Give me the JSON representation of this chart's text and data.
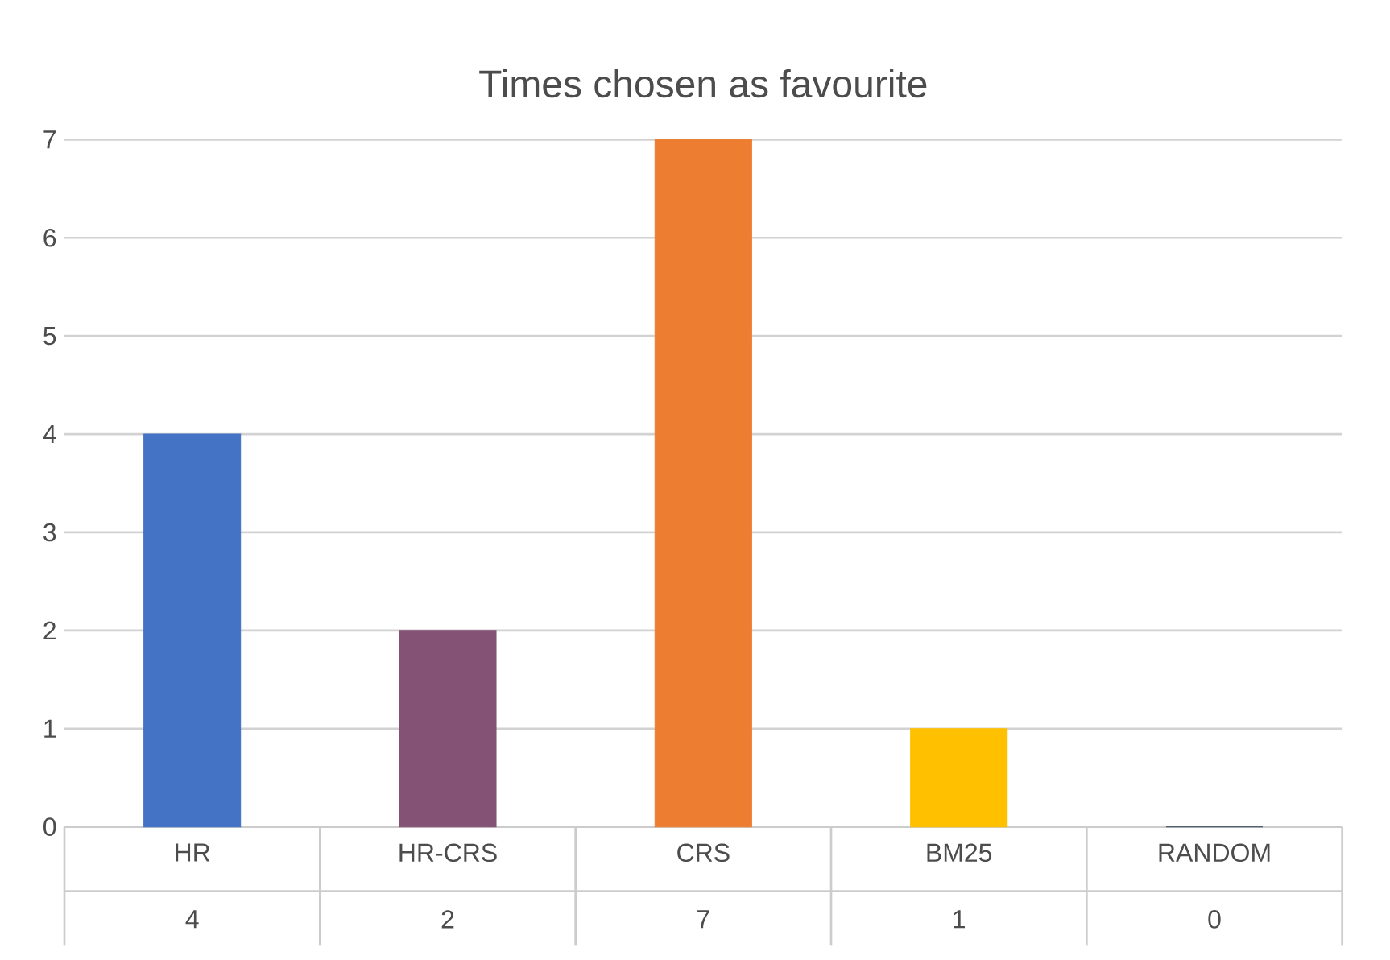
{
  "chart_data": {
    "type": "bar",
    "title": "Times chosen as favourite",
    "categories": [
      "HR",
      "HR-CRS",
      "CRS",
      "BM25",
      "RANDOM"
    ],
    "values": [
      4,
      2,
      7,
      1,
      0
    ],
    "colors": [
      "#4472c4",
      "#845275",
      "#ed7d31",
      "#ffc000",
      "#2f3e50"
    ],
    "ylim": [
      0,
      7
    ],
    "yticks": [
      0,
      1,
      2,
      3,
      4,
      5,
      6,
      7
    ],
    "grid": "y",
    "data_labels": true
  }
}
